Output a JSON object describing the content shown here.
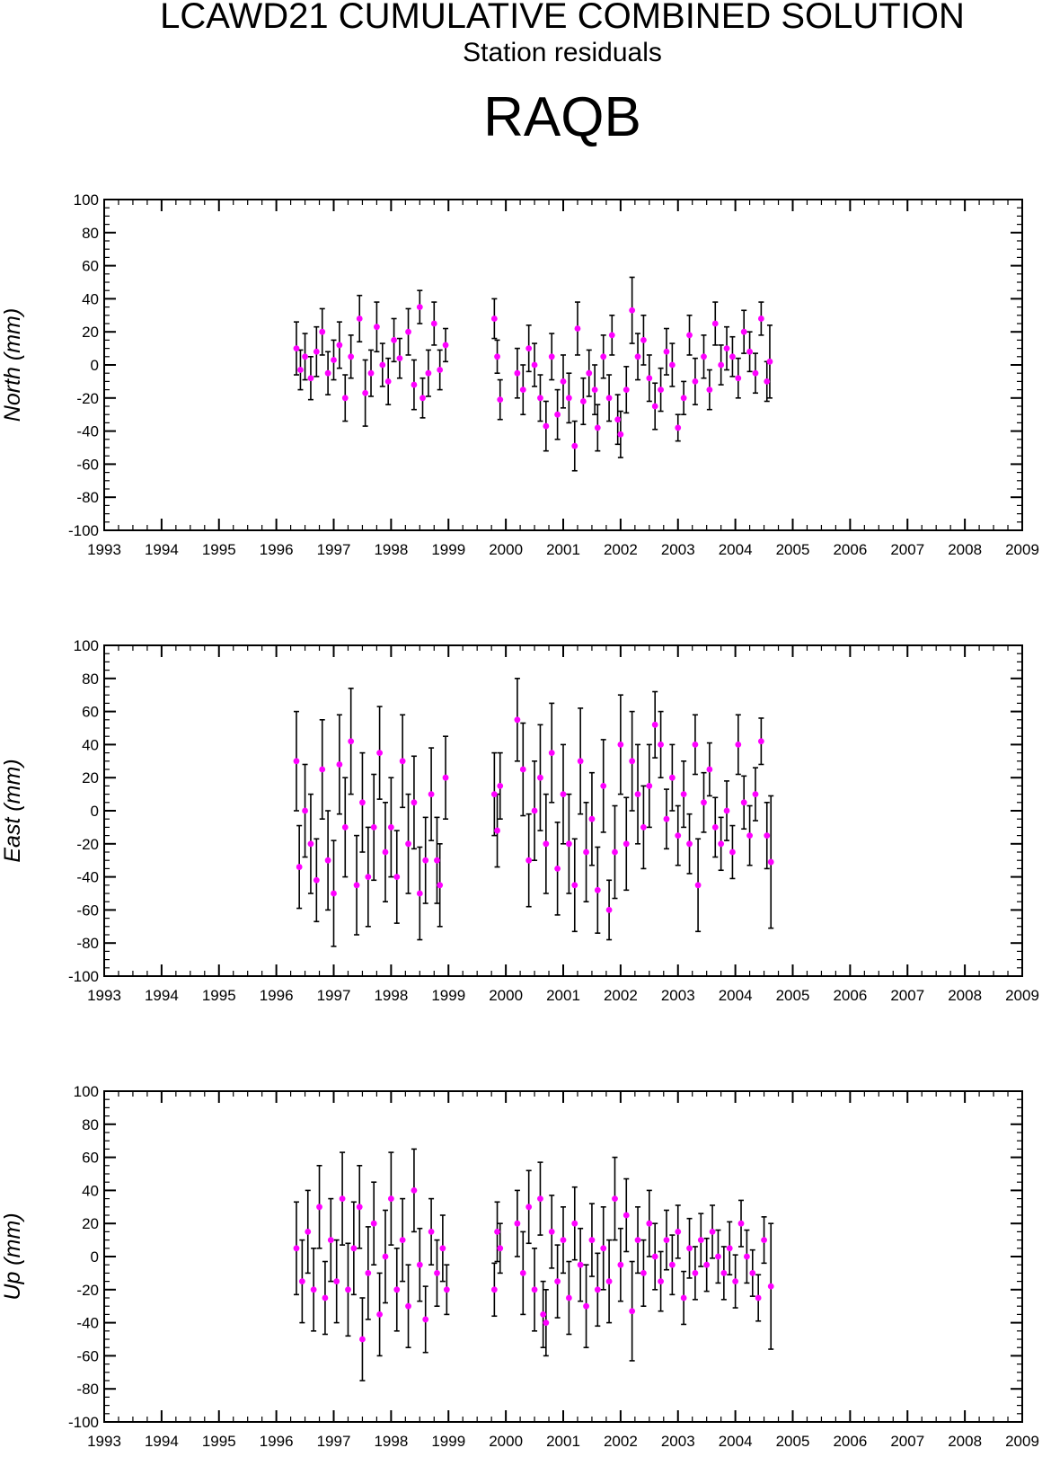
{
  "header": {
    "title": "LCAWD21 CUMULATIVE COMBINED SOLUTION",
    "subtitle": "Station residuals",
    "station": "RAQB"
  },
  "colors": {
    "marker": "#ff00ff",
    "errorbar": "#000000",
    "axis": "#000000"
  },
  "chart_data": [
    {
      "type": "scatter",
      "component": "North",
      "ylabel": "North (mm)",
      "xlim": [
        1993,
        2009
      ],
      "ylim": [
        -100,
        100
      ],
      "yticks": [
        -100,
        -80,
        -60,
        -40,
        -20,
        0,
        20,
        40,
        60,
        80,
        100
      ],
      "xticks": [
        1993,
        1994,
        1995,
        1996,
        1997,
        1998,
        1999,
        2000,
        2001,
        2002,
        2003,
        2004,
        2005,
        2006,
        2007,
        2008,
        2009
      ],
      "points": [
        [
          1996.35,
          10,
          16
        ],
        [
          1996.42,
          -3,
          12
        ],
        [
          1996.5,
          5,
          14
        ],
        [
          1996.6,
          -8,
          13
        ],
        [
          1996.7,
          8,
          15
        ],
        [
          1996.8,
          20,
          14
        ],
        [
          1996.9,
          -5,
          13
        ],
        [
          1997.0,
          3,
          12
        ],
        [
          1997.1,
          12,
          14
        ],
        [
          1997.2,
          -20,
          14
        ],
        [
          1997.3,
          5,
          13
        ],
        [
          1997.45,
          28,
          14
        ],
        [
          1997.55,
          -17,
          20
        ],
        [
          1997.65,
          -5,
          14
        ],
        [
          1997.75,
          23,
          15
        ],
        [
          1997.85,
          0,
          13
        ],
        [
          1997.95,
          -10,
          14
        ],
        [
          1998.05,
          15,
          13
        ],
        [
          1998.15,
          4,
          12
        ],
        [
          1998.3,
          20,
          14
        ],
        [
          1998.4,
          -12,
          15
        ],
        [
          1998.5,
          35,
          10
        ],
        [
          1998.55,
          -20,
          12
        ],
        [
          1998.65,
          -5,
          14
        ],
        [
          1998.75,
          25,
          13
        ],
        [
          1998.85,
          -3,
          12
        ],
        [
          1998.95,
          12,
          10
        ],
        [
          1999.8,
          28,
          12
        ],
        [
          1999.85,
          5,
          10
        ],
        [
          1999.9,
          -21,
          12
        ],
        [
          2000.2,
          -5,
          15
        ],
        [
          2000.3,
          -15,
          15
        ],
        [
          2000.4,
          10,
          14
        ],
        [
          2000.5,
          0,
          13
        ],
        [
          2000.6,
          -20,
          14
        ],
        [
          2000.7,
          -37,
          15
        ],
        [
          2000.8,
          5,
          14
        ],
        [
          2000.9,
          -30,
          15
        ],
        [
          2001.0,
          -10,
          16
        ],
        [
          2001.1,
          -20,
          15
        ],
        [
          2001.2,
          -49,
          15
        ],
        [
          2001.25,
          22,
          16
        ],
        [
          2001.35,
          -22,
          14
        ],
        [
          2001.45,
          -5,
          14
        ],
        [
          2001.55,
          -15,
          15
        ],
        [
          2001.6,
          -38,
          14
        ],
        [
          2001.7,
          5,
          13
        ],
        [
          2001.8,
          -20,
          14
        ],
        [
          2001.85,
          18,
          12
        ],
        [
          2001.95,
          -33,
          15
        ],
        [
          2002.0,
          -42,
          14
        ],
        [
          2002.1,
          -15,
          14
        ],
        [
          2002.2,
          33,
          20
        ],
        [
          2002.3,
          5,
          14
        ],
        [
          2002.4,
          15,
          15
        ],
        [
          2002.5,
          -8,
          14
        ],
        [
          2002.6,
          -25,
          14
        ],
        [
          2002.7,
          -15,
          13
        ],
        [
          2002.8,
          8,
          14
        ],
        [
          2002.9,
          0,
          13
        ],
        [
          2003.0,
          -38,
          8
        ],
        [
          2003.1,
          -20,
          10
        ],
        [
          2003.2,
          18,
          12
        ],
        [
          2003.3,
          -10,
          14
        ],
        [
          2003.45,
          5,
          13
        ],
        [
          2003.55,
          -15,
          12
        ],
        [
          2003.65,
          25,
          13
        ],
        [
          2003.75,
          0,
          12
        ],
        [
          2003.85,
          10,
          13
        ],
        [
          2003.95,
          5,
          12
        ],
        [
          2004.05,
          -8,
          12
        ],
        [
          2004.15,
          20,
          13
        ],
        [
          2004.25,
          8,
          12
        ],
        [
          2004.35,
          -5,
          12
        ],
        [
          2004.45,
          28,
          10
        ],
        [
          2004.55,
          -10,
          12
        ],
        [
          2004.6,
          2,
          22
        ]
      ]
    },
    {
      "type": "scatter",
      "component": "East",
      "ylabel": "East (mm)",
      "xlim": [
        1993,
        2009
      ],
      "ylim": [
        -100,
        100
      ],
      "yticks": [
        -100,
        -80,
        -60,
        -40,
        -20,
        0,
        20,
        40,
        60,
        80,
        100
      ],
      "xticks": [
        1993,
        1994,
        1995,
        1996,
        1997,
        1998,
        1999,
        2000,
        2001,
        2002,
        2003,
        2004,
        2005,
        2006,
        2007,
        2008,
        2009
      ],
      "points": [
        [
          1996.35,
          30,
          30
        ],
        [
          1996.4,
          -34,
          25
        ],
        [
          1996.5,
          0,
          28
        ],
        [
          1996.6,
          -20,
          30
        ],
        [
          1996.7,
          -42,
          25
        ],
        [
          1996.8,
          25,
          30
        ],
        [
          1996.9,
          -30,
          30
        ],
        [
          1997.0,
          -50,
          32
        ],
        [
          1997.1,
          28,
          30
        ],
        [
          1997.2,
          -10,
          30
        ],
        [
          1997.3,
          42,
          32
        ],
        [
          1997.4,
          -45,
          30
        ],
        [
          1997.5,
          5,
          30
        ],
        [
          1997.6,
          -40,
          30
        ],
        [
          1997.7,
          -10,
          32
        ],
        [
          1997.8,
          35,
          28
        ],
        [
          1997.9,
          -25,
          30
        ],
        [
          1998.0,
          -10,
          30
        ],
        [
          1998.1,
          -40,
          28
        ],
        [
          1998.2,
          30,
          28
        ],
        [
          1998.3,
          -20,
          30
        ],
        [
          1998.4,
          5,
          28
        ],
        [
          1998.5,
          -50,
          28
        ],
        [
          1998.6,
          -30,
          26
        ],
        [
          1998.7,
          10,
          28
        ],
        [
          1998.8,
          -30,
          26
        ],
        [
          1998.85,
          -45,
          25
        ],
        [
          1998.95,
          20,
          25
        ],
        [
          1999.8,
          10,
          25
        ],
        [
          1999.85,
          -12,
          22
        ],
        [
          1999.9,
          15,
          20
        ],
        [
          2000.2,
          55,
          25
        ],
        [
          2000.3,
          25,
          28
        ],
        [
          2000.4,
          -30,
          28
        ],
        [
          2000.5,
          0,
          30
        ],
        [
          2000.6,
          20,
          32
        ],
        [
          2000.7,
          -20,
          30
        ],
        [
          2000.8,
          35,
          30
        ],
        [
          2000.9,
          -35,
          28
        ],
        [
          2001.0,
          10,
          30
        ],
        [
          2001.1,
          -20,
          30
        ],
        [
          2001.2,
          -45,
          28
        ],
        [
          2001.3,
          30,
          32
        ],
        [
          2001.4,
          -25,
          30
        ],
        [
          2001.5,
          -5,
          28
        ],
        [
          2001.6,
          -48,
          26
        ],
        [
          2001.7,
          15,
          28
        ],
        [
          2001.8,
          -60,
          18
        ],
        [
          2001.9,
          -25,
          28
        ],
        [
          2002.0,
          40,
          30
        ],
        [
          2002.1,
          -20,
          28
        ],
        [
          2002.2,
          30,
          30
        ],
        [
          2002.3,
          10,
          30
        ],
        [
          2002.4,
          -10,
          25
        ],
        [
          2002.5,
          15,
          25
        ],
        [
          2002.6,
          52,
          20
        ],
        [
          2002.7,
          40,
          20
        ],
        [
          2002.8,
          -5,
          18
        ],
        [
          2002.9,
          20,
          20
        ],
        [
          2003.0,
          -15,
          18
        ],
        [
          2003.1,
          10,
          20
        ],
        [
          2003.2,
          -20,
          18
        ],
        [
          2003.3,
          40,
          18
        ],
        [
          2003.35,
          -45,
          28
        ],
        [
          2003.45,
          5,
          18
        ],
        [
          2003.55,
          25,
          16
        ],
        [
          2003.65,
          -10,
          18
        ],
        [
          2003.75,
          -20,
          16
        ],
        [
          2003.85,
          0,
          18
        ],
        [
          2003.95,
          -25,
          16
        ],
        [
          2004.05,
          40,
          18
        ],
        [
          2004.15,
          5,
          16
        ],
        [
          2004.25,
          -15,
          18
        ],
        [
          2004.35,
          10,
          16
        ],
        [
          2004.45,
          42,
          14
        ],
        [
          2004.55,
          -15,
          20
        ],
        [
          2004.62,
          -31,
          40
        ]
      ]
    },
    {
      "type": "scatter",
      "component": "Up",
      "ylabel": "Up (mm)",
      "xlim": [
        1993,
        2009
      ],
      "ylim": [
        -100,
        100
      ],
      "yticks": [
        -100,
        -80,
        -60,
        -40,
        -20,
        0,
        20,
        40,
        60,
        80,
        100
      ],
      "xticks": [
        1993,
        1994,
        1995,
        1996,
        1997,
        1998,
        1999,
        2000,
        2001,
        2002,
        2003,
        2004,
        2005,
        2006,
        2007,
        2008,
        2009
      ],
      "points": [
        [
          1996.35,
          5,
          28
        ],
        [
          1996.45,
          -15,
          25
        ],
        [
          1996.55,
          15,
          25
        ],
        [
          1996.65,
          -20,
          25
        ],
        [
          1996.75,
          30,
          25
        ],
        [
          1996.85,
          -25,
          22
        ],
        [
          1996.95,
          10,
          25
        ],
        [
          1997.05,
          -15,
          25
        ],
        [
          1997.15,
          35,
          28
        ],
        [
          1997.25,
          -20,
          28
        ],
        [
          1997.35,
          5,
          28
        ],
        [
          1997.45,
          30,
          25
        ],
        [
          1997.5,
          -50,
          25
        ],
        [
          1997.6,
          -10,
          28
        ],
        [
          1997.7,
          20,
          25
        ],
        [
          1997.8,
          -35,
          25
        ],
        [
          1997.9,
          0,
          28
        ],
        [
          1998.0,
          35,
          28
        ],
        [
          1998.1,
          -20,
          25
        ],
        [
          1998.2,
          10,
          25
        ],
        [
          1998.3,
          -30,
          25
        ],
        [
          1998.4,
          40,
          25
        ],
        [
          1998.5,
          -5,
          22
        ],
        [
          1998.6,
          -38,
          20
        ],
        [
          1998.7,
          15,
          20
        ],
        [
          1998.8,
          -10,
          20
        ],
        [
          1998.9,
          5,
          20
        ],
        [
          1998.97,
          -20,
          15
        ],
        [
          1999.8,
          -20,
          16
        ],
        [
          1999.85,
          15,
          18
        ],
        [
          1999.9,
          5,
          15
        ],
        [
          2000.2,
          20,
          20
        ],
        [
          2000.3,
          -10,
          25
        ],
        [
          2000.4,
          30,
          22
        ],
        [
          2000.5,
          -20,
          25
        ],
        [
          2000.6,
          35,
          22
        ],
        [
          2000.65,
          -35,
          20
        ],
        [
          2000.7,
          -40,
          20
        ],
        [
          2000.8,
          15,
          22
        ],
        [
          2000.9,
          -15,
          22
        ],
        [
          2001.0,
          10,
          20
        ],
        [
          2001.1,
          -25,
          22
        ],
        [
          2001.2,
          20,
          22
        ],
        [
          2001.3,
          -5,
          22
        ],
        [
          2001.4,
          -30,
          25
        ],
        [
          2001.5,
          10,
          22
        ],
        [
          2001.6,
          -20,
          22
        ],
        [
          2001.7,
          5,
          25
        ],
        [
          2001.8,
          -15,
          25
        ],
        [
          2001.9,
          35,
          25
        ],
        [
          2002.0,
          -5,
          22
        ],
        [
          2002.1,
          25,
          22
        ],
        [
          2002.2,
          -33,
          30
        ],
        [
          2002.3,
          10,
          20
        ],
        [
          2002.4,
          -10,
          20
        ],
        [
          2002.5,
          20,
          20
        ],
        [
          2002.6,
          0,
          20
        ],
        [
          2002.7,
          -15,
          18
        ],
        [
          2002.8,
          10,
          18
        ],
        [
          2002.9,
          -5,
          18
        ],
        [
          2003.0,
          15,
          16
        ],
        [
          2003.1,
          -25,
          16
        ],
        [
          2003.2,
          5,
          18
        ],
        [
          2003.3,
          -10,
          16
        ],
        [
          2003.4,
          10,
          16
        ],
        [
          2003.5,
          -5,
          16
        ],
        [
          2003.6,
          15,
          16
        ],
        [
          2003.7,
          0,
          16
        ],
        [
          2003.8,
          -10,
          16
        ],
        [
          2003.9,
          5,
          16
        ],
        [
          2004.0,
          -15,
          16
        ],
        [
          2004.1,
          20,
          14
        ],
        [
          2004.2,
          0,
          16
        ],
        [
          2004.3,
          -10,
          14
        ],
        [
          2004.4,
          -25,
          14
        ],
        [
          2004.5,
          10,
          14
        ],
        [
          2004.62,
          -18,
          38
        ]
      ]
    }
  ]
}
